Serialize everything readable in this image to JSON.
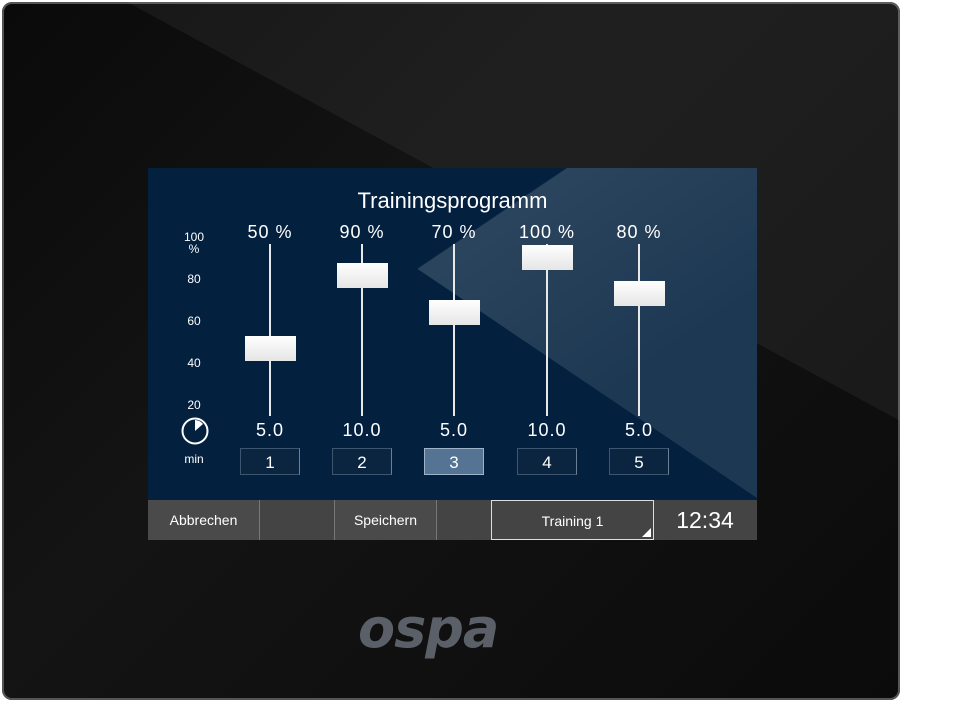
{
  "screen": {
    "title": "Trainingsprogramm",
    "scale": {
      "unit": "%",
      "ticks": [
        "100",
        "80",
        "60",
        "40",
        "20"
      ],
      "time_unit": "min"
    },
    "icon": "clock-icon",
    "steps": [
      {
        "number": "1",
        "intensity_label": "50 %",
        "intensity": 50,
        "minutes": "5.0",
        "selected": false
      },
      {
        "number": "2",
        "intensity_label": "90 %",
        "intensity": 90,
        "minutes": "10.0",
        "selected": false
      },
      {
        "number": "3",
        "intensity_label": "70 %",
        "intensity": 70,
        "minutes": "5.0",
        "selected": true
      },
      {
        "number": "4",
        "intensity_label": "100 %",
        "intensity": 100,
        "minutes": "10.0",
        "selected": false
      },
      {
        "number": "5",
        "intensity_label": "80 %",
        "intensity": 80,
        "minutes": "5.0",
        "selected": false
      }
    ],
    "bottom_bar": {
      "cancel": "Abbrechen",
      "save": "Speichern",
      "program": "Training 1",
      "time": "12:34"
    }
  },
  "brand": {
    "logo": "ospa"
  },
  "colors": {
    "screen_bg": "#03213f",
    "selected": "#557493"
  }
}
